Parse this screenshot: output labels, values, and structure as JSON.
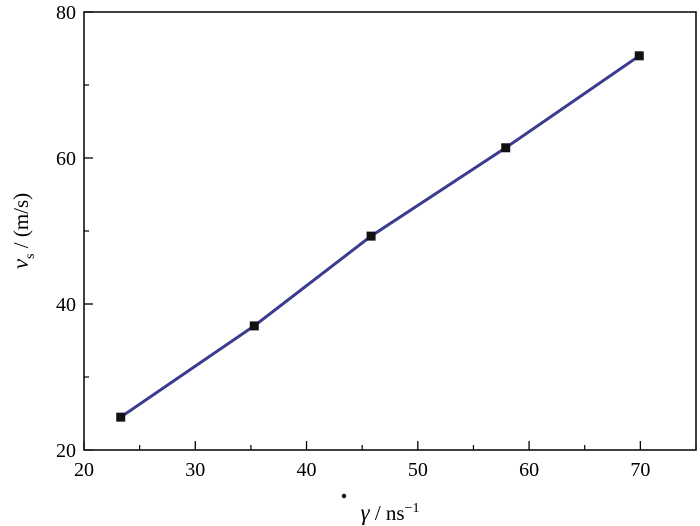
{
  "chart_data": {
    "type": "line",
    "title": "",
    "xlabel": {
      "symbol": "γ",
      "unit_text": " / ns",
      "unit_exponent": "−1"
    },
    "ylabel": {
      "symbol": "v",
      "subscript": "s",
      "unit_text": " / (m/s)"
    },
    "xlim": [
      20,
      75
    ],
    "ylim": [
      20,
      80
    ],
    "x_ticks": [
      20,
      30,
      40,
      50,
      60,
      70
    ],
    "y_ticks": [
      20,
      40,
      60,
      80
    ],
    "x_minor_ticks": [
      25,
      35,
      45,
      55,
      65,
      75
    ],
    "y_minor_ticks": [
      30,
      50,
      70
    ],
    "grid": false,
    "legend": "none",
    "series": [
      {
        "x": [
          23.3,
          35.3,
          45.8,
          57.9,
          69.9
        ],
        "y": [
          24.5,
          37.0,
          49.3,
          61.4,
          74.0
        ],
        "line_color": "#3b3b8f",
        "marker": "square",
        "marker_color": "#111111"
      }
    ]
  }
}
